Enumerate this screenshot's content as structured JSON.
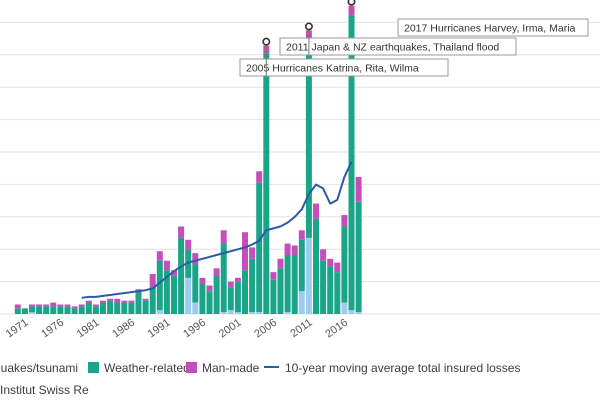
{
  "chart_data": {
    "type": "bar",
    "x_tick_labels": [
      "1971",
      "1976",
      "1981",
      "1986",
      "1991",
      "1996",
      "2001",
      "2006",
      "2011",
      "2016"
    ],
    "years": [
      1970,
      1971,
      1972,
      1973,
      1974,
      1975,
      1976,
      1977,
      1978,
      1979,
      1980,
      1981,
      1982,
      1983,
      1984,
      1985,
      1986,
      1987,
      1988,
      1989,
      1990,
      1991,
      1992,
      1993,
      1994,
      1995,
      1996,
      1997,
      1998,
      1999,
      2000,
      2001,
      2002,
      2003,
      2004,
      2005,
      2006,
      2007,
      2008,
      2009,
      2010,
      2011,
      2012,
      2013,
      2014,
      2015,
      2016,
      2017,
      2018
    ],
    "series": [
      {
        "name": "quakes/tsunami",
        "color": "#9ecbf0",
        "values": [
          0,
          0,
          1,
          0,
          0,
          0,
          0,
          0,
          0,
          0,
          0,
          0,
          0,
          0,
          0,
          0,
          0,
          0,
          0,
          0,
          2,
          0,
          0,
          0,
          19,
          6,
          0,
          0,
          0,
          1,
          2,
          1,
          0,
          1,
          1,
          0,
          0,
          0,
          1,
          0,
          12,
          40,
          0,
          0,
          0,
          0,
          6,
          2,
          1
        ]
      },
      {
        "name": "Weather-related",
        "color": "#1aa589",
        "values": [
          3,
          3,
          3,
          4,
          4,
          4,
          4,
          4,
          3,
          4,
          6,
          4,
          6,
          7,
          6,
          6,
          6,
          12,
          7,
          14,
          26,
          23,
          20,
          40,
          15,
          20,
          16,
          12,
          20,
          36,
          12,
          16,
          23,
          28,
          68,
          137,
          18,
          24,
          30,
          31,
          27,
          104,
          50,
          28,
          25,
          22,
          40,
          155,
          58
        ]
      },
      {
        "name": "Man-made",
        "color": "#c44fbb",
        "values": [
          2,
          0,
          1,
          1,
          1,
          2,
          1,
          1,
          1,
          1,
          1,
          1,
          1,
          1,
          2,
          1,
          1,
          1,
          1,
          7,
          5,
          5,
          3,
          6,
          5,
          6,
          3,
          3,
          4,
          7,
          3,
          2,
          20,
          6,
          6,
          4,
          4,
          5,
          6,
          5,
          5,
          5,
          8,
          6,
          4,
          5,
          6,
          5,
          13
        ]
      }
    ],
    "moving_average": {
      "name": "10-year moving average total insured losses",
      "color": "#2d5aa5",
      "start_year": 1979,
      "values": [
        8.5,
        9,
        9,
        9.5,
        10,
        10.5,
        11,
        11.5,
        12,
        12.5,
        13.5,
        16.5,
        19.5,
        22.5,
        25,
        27,
        28,
        29,
        30,
        31,
        32,
        33,
        34,
        35,
        36.5,
        38.5,
        44,
        45,
        46,
        48,
        51,
        55,
        63,
        68,
        66,
        58,
        60,
        72,
        80
      ]
    },
    "annotations": [
      {
        "text": "2017 Hurricanes Harvey, Irma, Maria",
        "year": 2017
      },
      {
        "text": "2011 Japan & NZ earthquakes, Thailand flood",
        "year": 2011
      },
      {
        "text": "2005 Hurricanes Katrina, Rita, Wilma",
        "year": 2005
      }
    ],
    "ylim": [
      0,
      165
    ],
    "grid": "horizontal",
    "legend_position": "bottom-left"
  },
  "legend": {
    "quake_label": "quakes/tsunami",
    "weather_label": "Weather-related",
    "manmade_label": "Man-made",
    "line_label": "10-year moving average total insured losses"
  },
  "source": {
    "text": "Institut Swiss Re"
  }
}
